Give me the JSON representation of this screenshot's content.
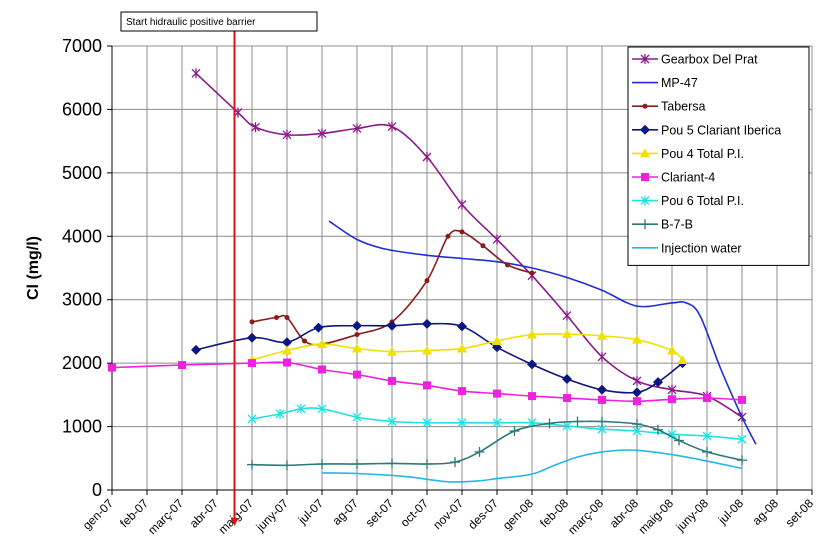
{
  "chart_data": {
    "type": "line",
    "title": "",
    "xlabel": "",
    "ylabel": "Cl (mg/l)",
    "ylim": [
      0,
      7000
    ],
    "yticks": [
      0,
      1000,
      2000,
      3000,
      4000,
      5000,
      6000,
      7000
    ],
    "grid": true,
    "legend_position": "top-right",
    "categories": [
      "gen-07",
      "feb-07",
      "març-07",
      "abr-07",
      "maig-07",
      "juny-07",
      "jul-07",
      "ag-07",
      "set-07",
      "oct-07",
      "nov-07",
      "des-07",
      "gen-08",
      "feb-08",
      "març-08",
      "abr-08",
      "maig-08",
      "juny-08",
      "jul-08",
      "ag-08",
      "set-08"
    ],
    "annotation": {
      "text": "Start hidraulic positive barrier",
      "x": 3.5,
      "color": "#e01010"
    },
    "series": [
      {
        "name": "Gearbox Del Prat",
        "color": "#8a1a8a",
        "marker": "star",
        "points": [
          [
            2.4,
            6570
          ],
          [
            3.6,
            5950
          ],
          [
            4.1,
            5720
          ],
          [
            5.0,
            5600
          ],
          [
            6.0,
            5620
          ],
          [
            7.0,
            5700
          ],
          [
            8.0,
            5730
          ],
          [
            9.0,
            5250
          ],
          [
            10.0,
            4500
          ],
          [
            11.0,
            3950
          ],
          [
            12.0,
            3380
          ],
          [
            13.0,
            2750
          ],
          [
            14.0,
            2100
          ],
          [
            15.0,
            1720
          ],
          [
            16.0,
            1580
          ],
          [
            17.0,
            1480
          ],
          [
            18.0,
            1150
          ]
        ]
      },
      {
        "name": "MP-47",
        "color": "#1f2fd4",
        "marker": "none",
        "points": [
          [
            6.2,
            4240
          ],
          [
            7.0,
            3950
          ],
          [
            7.8,
            3800
          ],
          [
            9.0,
            3700
          ],
          [
            10.0,
            3650
          ],
          [
            11.0,
            3600
          ],
          [
            12.0,
            3500
          ],
          [
            13.0,
            3350
          ],
          [
            14.0,
            3150
          ],
          [
            15.0,
            2900
          ],
          [
            16.0,
            2950
          ],
          [
            16.4,
            2950
          ],
          [
            16.8,
            2750
          ],
          [
            17.4,
            1900
          ],
          [
            18.0,
            1150
          ],
          [
            18.4,
            720
          ]
        ]
      },
      {
        "name": "Tabersa",
        "color": "#8b1a1a",
        "marker": "dot",
        "points": [
          [
            4.0,
            2650
          ],
          [
            4.7,
            2720
          ],
          [
            5.0,
            2720
          ],
          [
            5.5,
            2350
          ],
          [
            6.0,
            2300
          ],
          [
            7.0,
            2450
          ],
          [
            8.0,
            2650
          ],
          [
            9.0,
            3300
          ],
          [
            9.6,
            4000
          ],
          [
            10.0,
            4070
          ],
          [
            10.6,
            3850
          ],
          [
            11.3,
            3550
          ],
          [
            12.0,
            3420
          ]
        ]
      },
      {
        "name": "Pou 5 Clariant Iberica",
        "color": "#0d1680",
        "marker": "diamond",
        "points": [
          [
            2.4,
            2210
          ],
          [
            4.0,
            2400
          ],
          [
            5.0,
            2330
          ],
          [
            5.9,
            2560
          ],
          [
            7.0,
            2590
          ],
          [
            8.0,
            2590
          ],
          [
            9.0,
            2620
          ],
          [
            10.0,
            2580
          ],
          [
            11.0,
            2250
          ],
          [
            12.0,
            1980
          ],
          [
            13.0,
            1750
          ],
          [
            14.0,
            1580
          ],
          [
            15.0,
            1540
          ],
          [
            15.6,
            1700
          ],
          [
            16.3,
            2000
          ]
        ]
      },
      {
        "name": "Pou 4 Total P.I.",
        "color": "#f0e000",
        "marker": "triangle",
        "points": [
          [
            4.0,
            2050
          ],
          [
            5.0,
            2200
          ],
          [
            6.0,
            2300
          ],
          [
            7.0,
            2230
          ],
          [
            8.0,
            2180
          ],
          [
            9.0,
            2200
          ],
          [
            10.0,
            2230
          ],
          [
            11.0,
            2350
          ],
          [
            12.0,
            2450
          ],
          [
            13.0,
            2460
          ],
          [
            14.0,
            2430
          ],
          [
            15.0,
            2370
          ],
          [
            16.0,
            2200
          ],
          [
            16.3,
            2050
          ]
        ]
      },
      {
        "name": "Clariant-4",
        "color": "#ee22dd",
        "marker": "square",
        "points": [
          [
            0.0,
            1930
          ],
          [
            2.0,
            1970
          ],
          [
            4.0,
            2000
          ],
          [
            5.0,
            2010
          ],
          [
            6.0,
            1900
          ],
          [
            7.0,
            1820
          ],
          [
            8.0,
            1720
          ],
          [
            9.0,
            1650
          ],
          [
            10.0,
            1560
          ],
          [
            11.0,
            1520
          ],
          [
            12.0,
            1480
          ],
          [
            13.0,
            1450
          ],
          [
            14.0,
            1420
          ],
          [
            15.0,
            1400
          ],
          [
            16.0,
            1430
          ],
          [
            17.0,
            1450
          ],
          [
            18.0,
            1420
          ]
        ]
      },
      {
        "name": "Pou 6 Total P.I.",
        "color": "#22e0e0",
        "marker": "star",
        "points": [
          [
            4.0,
            1120
          ],
          [
            4.8,
            1200
          ],
          [
            5.4,
            1280
          ],
          [
            6.0,
            1280
          ],
          [
            7.0,
            1150
          ],
          [
            8.0,
            1080
          ],
          [
            9.0,
            1060
          ],
          [
            10.0,
            1060
          ],
          [
            11.0,
            1060
          ],
          [
            12.0,
            1060
          ],
          [
            13.0,
            1010
          ],
          [
            14.0,
            960
          ],
          [
            15.0,
            930
          ],
          [
            16.0,
            880
          ],
          [
            17.0,
            850
          ],
          [
            18.0,
            800
          ]
        ]
      },
      {
        "name": "B-7-B",
        "color": "#2a7a7a",
        "marker": "plus",
        "points": [
          [
            4.0,
            400
          ],
          [
            5.0,
            390
          ],
          [
            6.0,
            410
          ],
          [
            7.0,
            410
          ],
          [
            8.0,
            420
          ],
          [
            9.0,
            410
          ],
          [
            9.8,
            440
          ],
          [
            10.5,
            600
          ],
          [
            11.5,
            930
          ],
          [
            12.5,
            1050
          ],
          [
            13.3,
            1080
          ],
          [
            14.0,
            1080
          ],
          [
            15.0,
            1040
          ],
          [
            15.6,
            950
          ],
          [
            16.2,
            780
          ],
          [
            17.0,
            600
          ],
          [
            18.0,
            470
          ]
        ]
      },
      {
        "name": "Injection water",
        "color": "#22b8e8",
        "marker": "none",
        "points": [
          [
            6.0,
            270
          ],
          [
            7.0,
            260
          ],
          [
            8.0,
            230
          ],
          [
            8.6,
            200
          ],
          [
            9.6,
            130
          ],
          [
            10.4,
            140
          ],
          [
            11.0,
            180
          ],
          [
            12.0,
            250
          ],
          [
            12.6,
            380
          ],
          [
            13.3,
            520
          ],
          [
            14.0,
            600
          ],
          [
            14.8,
            630
          ],
          [
            15.6,
            590
          ],
          [
            16.6,
            500
          ],
          [
            18.0,
            340
          ]
        ]
      }
    ]
  }
}
